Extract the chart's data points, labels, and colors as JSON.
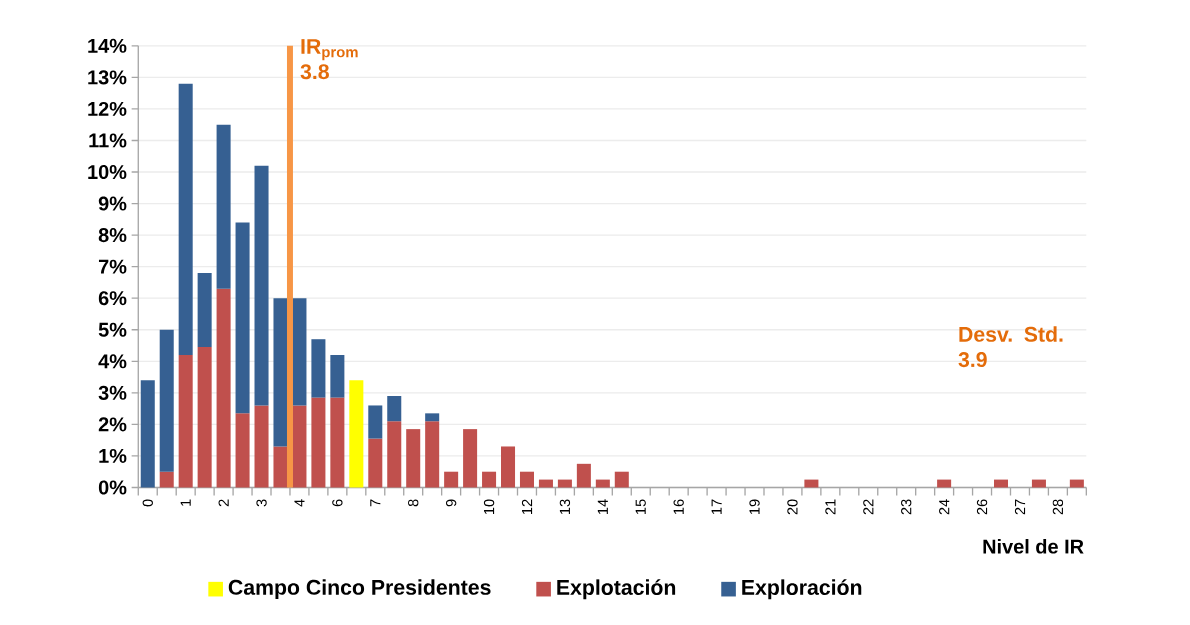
{
  "chart_data": {
    "type": "bar",
    "stacked": true,
    "xlabel": "Nivel de IR",
    "categories": [
      "0",
      null,
      "1",
      null,
      "2",
      null,
      "3",
      null,
      "4",
      null,
      "6",
      null,
      "7",
      null,
      "8",
      null,
      "9",
      null,
      "10",
      null,
      "12",
      null,
      "13",
      null,
      "14",
      null,
      "15",
      null,
      "16",
      null,
      "17",
      null,
      "19",
      null,
      "20",
      null,
      "21",
      null,
      "22",
      null,
      "23",
      null,
      "24",
      null,
      "26",
      null,
      "27",
      null,
      "28",
      null
    ],
    "series": [
      {
        "name": "Campo Cinco Presidentes",
        "color": "#ffff00",
        "values": [
          null,
          null,
          null,
          null,
          null,
          null,
          null,
          null,
          null,
          null,
          null,
          3.4,
          null,
          null,
          null,
          null,
          null,
          null,
          null,
          null,
          null,
          null,
          null,
          null,
          null,
          null,
          null,
          null,
          null,
          null,
          null,
          null,
          null,
          null,
          null,
          null,
          null,
          null,
          null,
          null,
          null,
          null,
          null,
          null,
          null,
          null,
          null,
          null,
          null,
          null
        ]
      },
      {
        "name": "Explotación",
        "color": "#c0504d",
        "values": [
          null,
          0.5,
          4.2,
          4.45,
          6.3,
          2.35,
          2.6,
          1.3,
          2.6,
          2.85,
          2.85,
          null,
          1.55,
          2.1,
          1.85,
          2.1,
          0.5,
          1.85,
          0.5,
          1.3,
          0.5,
          0.25,
          0.25,
          0.75,
          0.25,
          0.5,
          null,
          null,
          null,
          null,
          null,
          null,
          null,
          null,
          null,
          0.25,
          null,
          null,
          null,
          null,
          null,
          null,
          0.25,
          null,
          null,
          0.25,
          null,
          0.25,
          null,
          0.25
        ]
      },
      {
        "name": "Exploración",
        "color": "#366092",
        "values": [
          3.4,
          4.5,
          8.6,
          2.35,
          5.2,
          6.05,
          7.6,
          4.7,
          3.4,
          1.85,
          1.35,
          null,
          1.05,
          0.8,
          null,
          0.25,
          null,
          null,
          null,
          null,
          null,
          null,
          null,
          null,
          null,
          null,
          null,
          null,
          null,
          null,
          null,
          null,
          null,
          null,
          null,
          null,
          null,
          null,
          null,
          null,
          null,
          null,
          null,
          null,
          null,
          null,
          null,
          null,
          null,
          null
        ]
      }
    ],
    "ylim": [
      0,
      14
    ],
    "yticks": [
      {
        "value": 0,
        "label": "0%"
      },
      {
        "value": 1,
        "label": "1%"
      },
      {
        "value": 2,
        "label": "2%"
      },
      {
        "value": 3,
        "label": "3%"
      },
      {
        "value": 4,
        "label": "4%"
      },
      {
        "value": 5,
        "label": "5%"
      },
      {
        "value": 6,
        "label": "6%"
      },
      {
        "value": 7,
        "label": "7%"
      },
      {
        "value": 8,
        "label": "8%"
      },
      {
        "value": 9,
        "label": "9%"
      },
      {
        "value": 10,
        "label": "10%"
      },
      {
        "value": 11,
        "label": "11%"
      },
      {
        "value": 12,
        "label": "12%"
      },
      {
        "value": 13,
        "label": "13%"
      },
      {
        "value": 14,
        "label": "14%"
      }
    ],
    "grid": "y",
    "legend": "bottom",
    "annotations": [
      "IR$_{prom}$ 3.8",
      "Desv. Std. 3.9"
    ]
  }
}
